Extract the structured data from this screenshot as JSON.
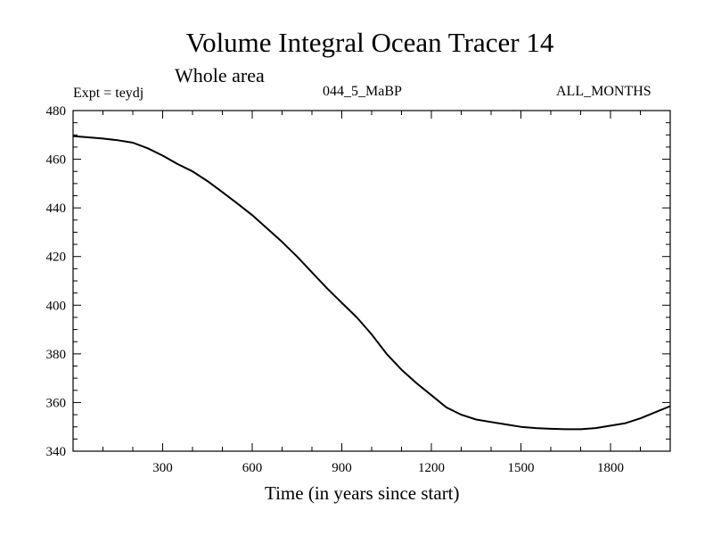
{
  "chart_data": {
    "type": "line",
    "title": "Volume Integral Ocean Tracer 14",
    "subtitle": "Whole area",
    "experiment": "Expt = teydj",
    "run_label": "044_5_MaBP",
    "months_label": "ALL_MONTHS",
    "xlabel": "Time (in years since start)",
    "ylabel": "",
    "xlim": [
      0,
      2000
    ],
    "ylim": [
      340,
      480
    ],
    "xticks": [
      300,
      600,
      900,
      1200,
      1500,
      1800
    ],
    "yticks": [
      340,
      360,
      380,
      400,
      420,
      440,
      460,
      480
    ],
    "x_minor_step": 100,
    "y_minor_step": 5,
    "series": [
      {
        "name": "Volume Integral Ocean Tracer 14",
        "x": [
          0,
          50,
          100,
          150,
          200,
          250,
          300,
          350,
          400,
          450,
          500,
          550,
          600,
          650,
          700,
          750,
          800,
          850,
          900,
          950,
          1000,
          1050,
          1100,
          1150,
          1200,
          1250,
          1300,
          1350,
          1400,
          1450,
          1500,
          1550,
          1600,
          1650,
          1700,
          1750,
          1800,
          1850,
          1900,
          1950,
          2000
        ],
        "values": [
          469.5,
          469.0,
          468.5,
          467.8,
          466.8,
          464.5,
          461.5,
          458.0,
          455.0,
          451.0,
          446.5,
          441.8,
          437.0,
          431.5,
          426.0,
          420.0,
          413.5,
          407.0,
          401.0,
          395.0,
          388.0,
          380.0,
          373.5,
          368.0,
          363.0,
          358.0,
          355.0,
          353.0,
          352.0,
          351.0,
          350.0,
          349.5,
          349.2,
          349.0,
          349.0,
          349.5,
          350.5,
          351.5,
          353.5,
          356.0,
          358.5
        ]
      }
    ]
  }
}
